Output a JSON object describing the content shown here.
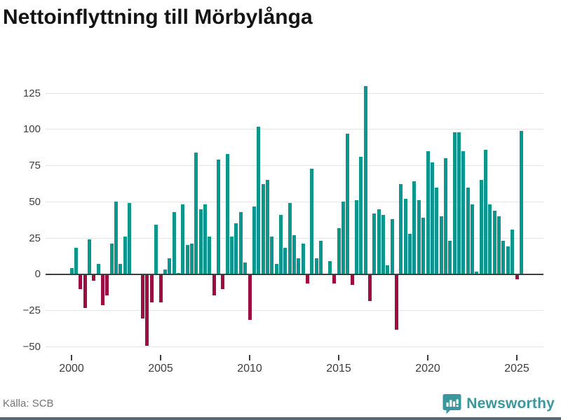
{
  "header": {
    "title": "Nettoinflyttning till Mörbylånga"
  },
  "footer": {
    "source_label": "Källa: SCB",
    "logo_text": "Newsworthy"
  },
  "chart_data": {
    "type": "bar",
    "title": "Nettoinflyttning till Mörbylånga",
    "source": "Källa: SCB",
    "x_unit": "quarter",
    "start_period": "2000Q1",
    "end_period": "2025Q2",
    "x_tick_labels": [
      "2000",
      "2005",
      "2010",
      "2015",
      "2020",
      "2025"
    ],
    "y_tick_labels": [
      "125",
      "100",
      "75",
      "50",
      "25",
      "0",
      "−25",
      "−50"
    ],
    "y_ticks": [
      125,
      100,
      75,
      50,
      25,
      0,
      -25,
      -50
    ],
    "ylim": [
      -57,
      136
    ],
    "grid": "horizontal",
    "legend": "none",
    "positive_color": "#0b968e",
    "negative_color": "#9c0d42",
    "values": [
      4,
      18,
      -10,
      -23,
      24,
      -4,
      7,
      -21,
      -14,
      21,
      50,
      7,
      26,
      49,
      0,
      0,
      -30,
      -49,
      -19,
      34,
      -19,
      3,
      11,
      43,
      1,
      48,
      20,
      21,
      84,
      45,
      48,
      26,
      -14,
      79,
      -10,
      83,
      26,
      35,
      43,
      8,
      -31,
      47,
      102,
      62,
      65,
      26,
      7,
      41,
      18,
      49,
      27,
      11,
      21,
      -6,
      73,
      11,
      23,
      0,
      9,
      -6,
      32,
      50,
      97,
      -7,
      51,
      81,
      130,
      -18,
      42,
      45,
      41,
      6,
      38,
      -38,
      62,
      52,
      28,
      64,
      51,
      39,
      85,
      77,
      60,
      40,
      80,
      23,
      98,
      98,
      85,
      60,
      48,
      2,
      65,
      86,
      48,
      44,
      40,
      23,
      19,
      31,
      -3,
      99
    ]
  },
  "layout_colors": {
    "grid": "#e3e3e3",
    "zero_line": "#3f3f3f",
    "axis_text": "#3d3d3d",
    "source_text": "#757575",
    "logo_teal": "#3a979c",
    "bottom_strip": "#566b76"
  }
}
